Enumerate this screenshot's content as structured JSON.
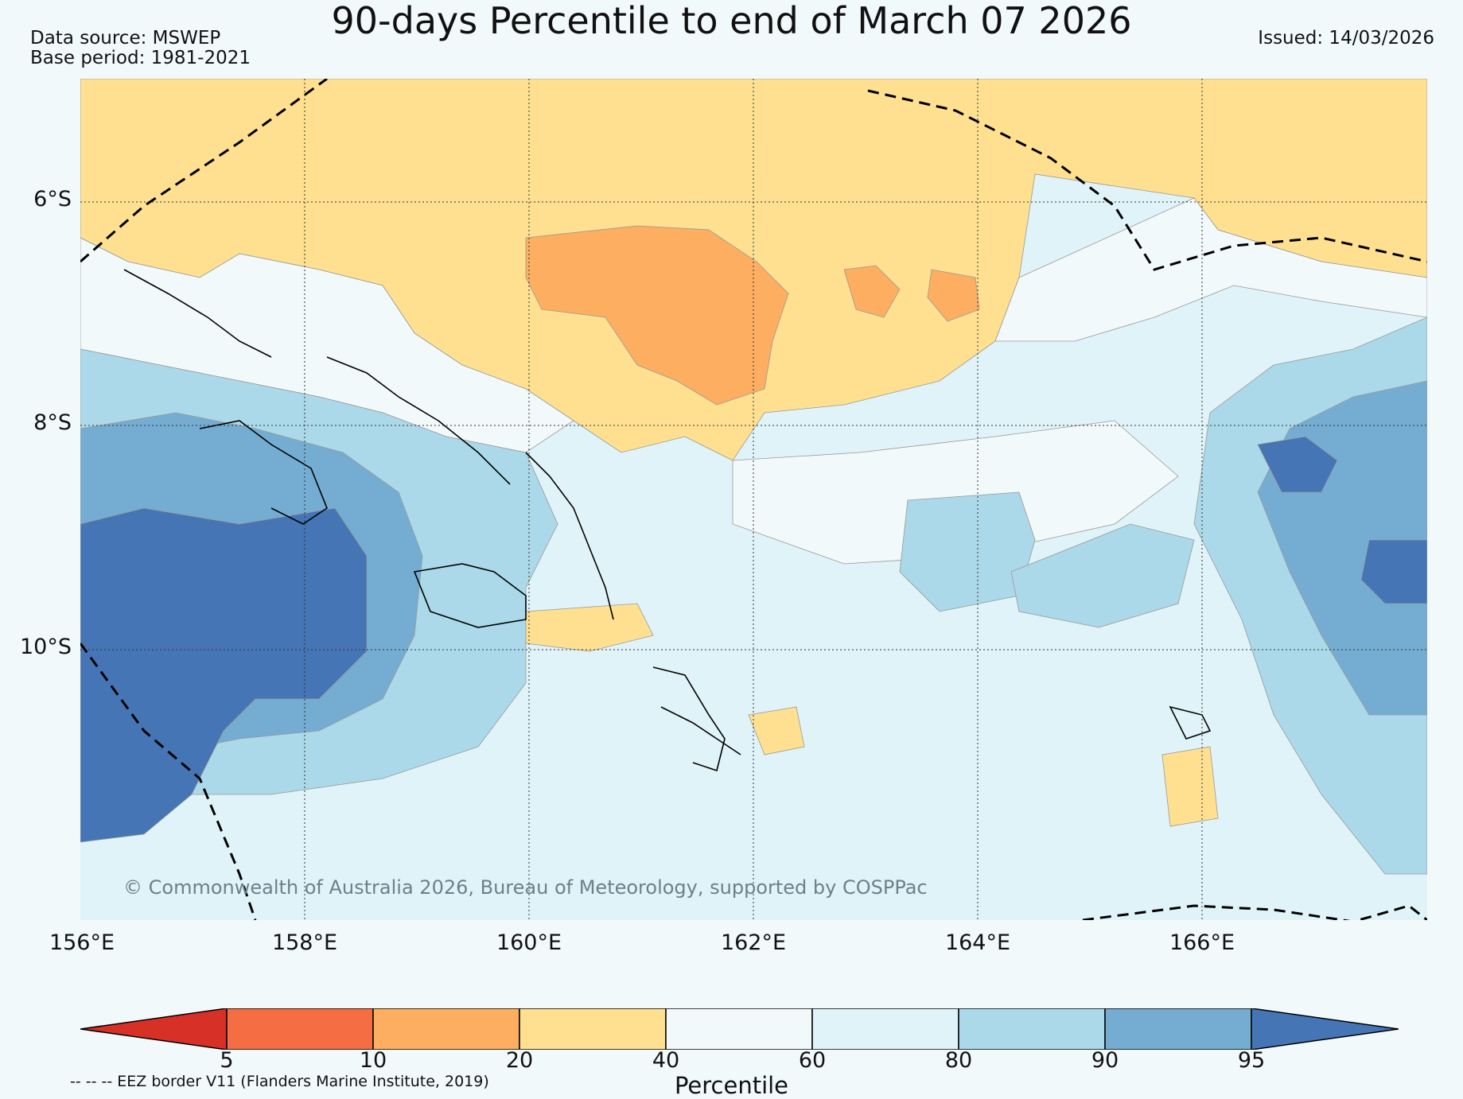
{
  "title": "90-days Percentile to end of March 07 2026",
  "data_source": "Data source: MSWEP",
  "base_period": "Base period: 1981-2021",
  "issued": "Issued: 14/03/2026",
  "copyright": "© Commonwealth of Australia 2026, Bureau of Meteorology, supported by COSPPac",
  "lat_labels": [
    "6°S",
    "8°S",
    "10°S"
  ],
  "lon_labels": [
    "156°E",
    "158°E",
    "160°E",
    "162°E",
    "164°E",
    "166°E"
  ],
  "colorbar": {
    "label": "Percentile",
    "ticks": [
      "5",
      "10",
      "20",
      "40",
      "60",
      "80",
      "90",
      "95"
    ],
    "colors": [
      "#d73027",
      "#f46d43",
      "#fdae61",
      "#fee090",
      "#f2f9fb",
      "#e0f3f8",
      "#abd9e9",
      "#74add1",
      "#4575b4"
    ]
  },
  "eez_note": "-- -- -- EEZ border V11 (Flanders Marine Institute, 2019)"
}
